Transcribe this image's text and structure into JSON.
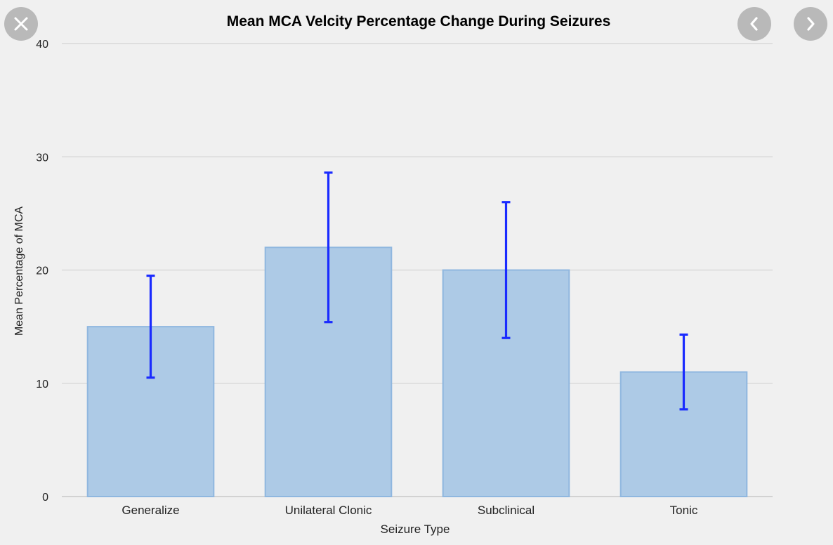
{
  "controls": {
    "close_icon": "close-icon",
    "prev_icon": "chevron-left-icon",
    "next_icon": "chevron-right-icon",
    "button_color": "#b9b9b9"
  },
  "chart_data": {
    "type": "bar",
    "title": "Mean MCA Velcity Percentage Change During Seizures",
    "xlabel": "Seizure Type",
    "ylabel": "Mean Percentage of MCA",
    "categories": [
      "Generalize",
      "Unilateral Clonic",
      "Subclinical",
      "Tonic"
    ],
    "values": [
      15,
      22,
      20,
      11
    ],
    "error_low": [
      10.5,
      15.4,
      14,
      7.7
    ],
    "error_high": [
      19.5,
      28.6,
      26,
      14.3
    ],
    "ylim": [
      0,
      40
    ],
    "yticks": [
      0,
      10,
      20,
      30,
      40
    ],
    "grid": true,
    "legend": "none",
    "bar_fill": "#adcae6",
    "bar_stroke": "#8fb7df",
    "error_color": "#1a2bff",
    "grid_color": "#d4d4d4"
  }
}
